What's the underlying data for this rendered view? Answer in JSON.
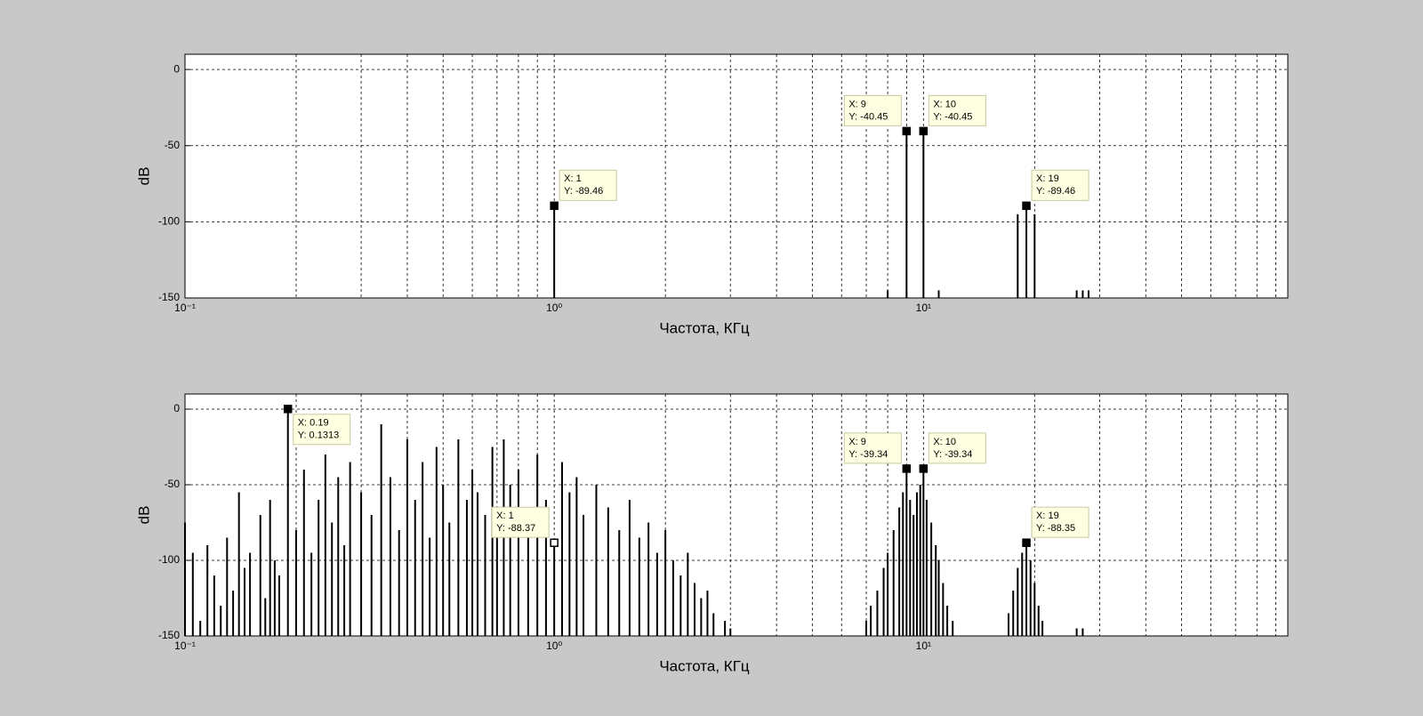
{
  "chart_data": [
    {
      "type": "stem",
      "xlabel": "Частота, КГц",
      "ylabel": "dB",
      "xscale": "log",
      "grid": true,
      "xlim": [
        0.1,
        97
      ],
      "ylim": [
        -150,
        10
      ],
      "xticks": [
        {
          "value": 0.1,
          "label": "10⁻¹"
        },
        {
          "value": 1,
          "label": "10⁰"
        },
        {
          "value": 10,
          "label": "10¹"
        }
      ],
      "yticks": [
        -150,
        -100,
        -50,
        0
      ],
      "series": [
        {
          "color": "#000000",
          "x": [
            1,
            8,
            9,
            10,
            11,
            18,
            19,
            20,
            26,
            27,
            28
          ],
          "values": [
            -89.46,
            -145,
            -40.45,
            -40.45,
            -145,
            -95,
            -89.46,
            -95,
            -145,
            -145,
            -145
          ]
        }
      ],
      "annotations": [
        {
          "x": 1,
          "y": -89.46,
          "label": [
            "X: 1",
            "Y: -89.46"
          ],
          "placement": "upper-right",
          "color": "#000000"
        },
        {
          "x": 9,
          "y": -40.45,
          "label": [
            "X: 9",
            "Y: -40.45"
          ],
          "placement": "upper-left",
          "color": "#000000"
        },
        {
          "x": 10,
          "y": -40.45,
          "label": [
            "X: 10",
            "Y: -40.45"
          ],
          "placement": "upper-right",
          "color": "#000000"
        },
        {
          "x": 19,
          "y": -89.46,
          "label": [
            "X: 19",
            "Y: -89.46"
          ],
          "placement": "upper-right",
          "color": "#000000"
        }
      ]
    },
    {
      "type": "stem",
      "xlabel": "Частота, КГц",
      "ylabel": "dB",
      "xscale": "log",
      "grid": true,
      "xlim": [
        0.1,
        97
      ],
      "ylim": [
        -150,
        10
      ],
      "xticks": [
        {
          "value": 0.1,
          "label": "10⁻¹"
        },
        {
          "value": 1,
          "label": "10⁰"
        },
        {
          "value": 10,
          "label": "10¹"
        }
      ],
      "yticks": [
        -150,
        -100,
        -50,
        0
      ],
      "series": [
        {
          "color": "#000000",
          "x": [
            0.1,
            0.105,
            0.11,
            0.115,
            0.12,
            0.125,
            0.13,
            0.135,
            0.14,
            0.145,
            0.15,
            0.16,
            0.165,
            0.17,
            0.175,
            0.18,
            0.19,
            0.2,
            0.21,
            0.22,
            0.23,
            0.24,
            0.25,
            0.26,
            0.27,
            0.28,
            0.3,
            0.32,
            0.34,
            0.36,
            0.38,
            0.4,
            0.42,
            0.44,
            0.46,
            0.48,
            0.5,
            0.52,
            0.55,
            0.58,
            0.6,
            0.62,
            0.65,
            0.68,
            0.7,
            0.73,
            0.76,
            0.8,
            0.85,
            0.9,
            0.95,
            1,
            1.05,
            1.1,
            1.15,
            1.2,
            1.3,
            1.4,
            1.5,
            1.6,
            1.7,
            1.8,
            1.9,
            2,
            2.1,
            2.2,
            2.3,
            2.4,
            2.5,
            2.6,
            2.7,
            2.9,
            3,
            7,
            7.2,
            7.5,
            7.8,
            8,
            8.3,
            8.6,
            8.8,
            9,
            9.2,
            9.4,
            9.6,
            9.8,
            10,
            10.2,
            10.5,
            10.8,
            11,
            11.3,
            11.6,
            12,
            17,
            17.5,
            18,
            18.5,
            19,
            19.5,
            20,
            20.5,
            21,
            26,
            27
          ],
          "values": [
            -75,
            -95,
            -140,
            -90,
            -110,
            -130,
            -85,
            -120,
            -55,
            -105,
            -95,
            -70,
            -125,
            -60,
            -100,
            -110,
            0.1313,
            -80,
            -40,
            -95,
            -60,
            -30,
            -75,
            -45,
            -90,
            -35,
            -55,
            -70,
            -10,
            -45,
            -80,
            -20,
            -60,
            -35,
            -85,
            -25,
            -50,
            -75,
            -20,
            -60,
            -40,
            -55,
            -70,
            -25,
            -65,
            -20,
            -50,
            -40,
            -75,
            -30,
            -60,
            -88.37,
            -35,
            -55,
            -45,
            -70,
            -50,
            -65,
            -80,
            -60,
            -85,
            -75,
            -95,
            -80,
            -100,
            -110,
            -95,
            -115,
            -125,
            -120,
            -135,
            -140,
            -145,
            -140,
            -130,
            -120,
            -105,
            -95,
            -80,
            -65,
            -55,
            -39.34,
            -60,
            -70,
            -55,
            -50,
            -39.34,
            -60,
            -75,
            -90,
            -100,
            -115,
            -130,
            -140,
            -135,
            -120,
            -105,
            -95,
            -88.35,
            -100,
            -115,
            -130,
            -140,
            -145,
            -145
          ]
        }
      ],
      "annotations": [
        {
          "x": 0.19,
          "y": 0.1313,
          "label": [
            "X: 0.19",
            "Y: 0.1313"
          ],
          "placement": "lower-right",
          "color": "#000000"
        },
        {
          "x": 1,
          "y": -88.37,
          "label": [
            "X: 1",
            "Y: -88.37"
          ],
          "placement": "upper-left",
          "color": "#ffffff"
        },
        {
          "x": 9,
          "y": -39.34,
          "label": [
            "X: 9",
            "Y: -39.34"
          ],
          "placement": "upper-left",
          "color": "#000000"
        },
        {
          "x": 10,
          "y": -39.34,
          "label": [
            "X: 10",
            "Y: -39.34"
          ],
          "placement": "upper-right",
          "color": "#000000"
        },
        {
          "x": 19,
          "y": -88.35,
          "label": [
            "X: 19",
            "Y: -88.35"
          ],
          "placement": "upper-right",
          "color": "#000000"
        }
      ]
    }
  ]
}
